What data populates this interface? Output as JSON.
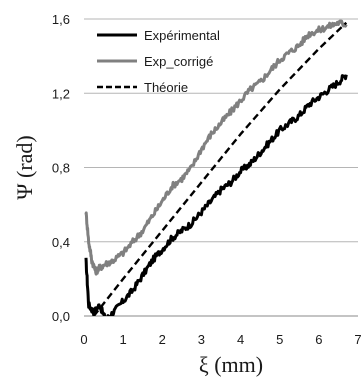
{
  "chart_data": {
    "type": "line",
    "xlabel": "ξ (mm)",
    "ylabel": "Ψ (rad)",
    "xlim": [
      0,
      7
    ],
    "ylim": [
      0,
      1.6
    ],
    "x_ticks": [
      "0",
      "1",
      "2",
      "3",
      "4",
      "5",
      "6",
      "7"
    ],
    "y_ticks": [
      "0,0",
      "0,4",
      "0,8",
      "1,2",
      "1,6"
    ],
    "y_tick_values": [
      0,
      0.4,
      0.8,
      1.2,
      1.6
    ],
    "grid": "horizontal",
    "legend_position": "top-left",
    "series": [
      {
        "name": "Expérimental",
        "color": "#000000",
        "style": "solid",
        "x": [
          0.05,
          0.12,
          0.25,
          0.4,
          0.55,
          0.75,
          1.0,
          1.25,
          1.5,
          1.75,
          2.0,
          2.25,
          2.5,
          2.75,
          3.0,
          3.25,
          3.5,
          3.75,
          4.0,
          4.25,
          4.5,
          4.75,
          5.0,
          5.25,
          5.5,
          5.75,
          6.0,
          6.25,
          6.5,
          6.7
        ],
        "y": [
          0.3,
          0.06,
          0.02,
          0.06,
          -0.02,
          0.02,
          0.08,
          0.14,
          0.22,
          0.3,
          0.36,
          0.42,
          0.46,
          0.5,
          0.56,
          0.62,
          0.68,
          0.72,
          0.78,
          0.82,
          0.88,
          0.94,
          1.0,
          1.04,
          1.08,
          1.14,
          1.18,
          1.22,
          1.26,
          1.3
        ]
      },
      {
        "name": "Exp_corrigé",
        "color": "#808080",
        "style": "solid",
        "x": [
          0.05,
          0.12,
          0.2,
          0.3,
          0.4,
          0.55,
          0.75,
          1.0,
          1.25,
          1.5,
          1.75,
          2.0,
          2.25,
          2.5,
          2.75,
          3.0,
          3.25,
          3.5,
          3.75,
          4.0,
          4.25,
          4.5,
          4.75,
          5.0,
          5.25,
          5.5,
          5.75,
          6.0,
          6.25,
          6.5,
          6.7
        ],
        "y": [
          0.56,
          0.4,
          0.3,
          0.24,
          0.26,
          0.28,
          0.3,
          0.34,
          0.4,
          0.46,
          0.54,
          0.62,
          0.7,
          0.74,
          0.8,
          0.9,
          0.98,
          1.04,
          1.1,
          1.16,
          1.22,
          1.26,
          1.32,
          1.38,
          1.42,
          1.46,
          1.52,
          1.54,
          1.56,
          1.58,
          1.57
        ]
      },
      {
        "name": "Théorie",
        "color": "#000000",
        "style": "dashed",
        "x": [
          0.25,
          1.0,
          2.0,
          3.0,
          4.0,
          5.0,
          6.0,
          6.7
        ],
        "y": [
          0.0,
          0.2,
          0.46,
          0.72,
          0.98,
          1.22,
          1.44,
          1.58
        ]
      }
    ]
  }
}
